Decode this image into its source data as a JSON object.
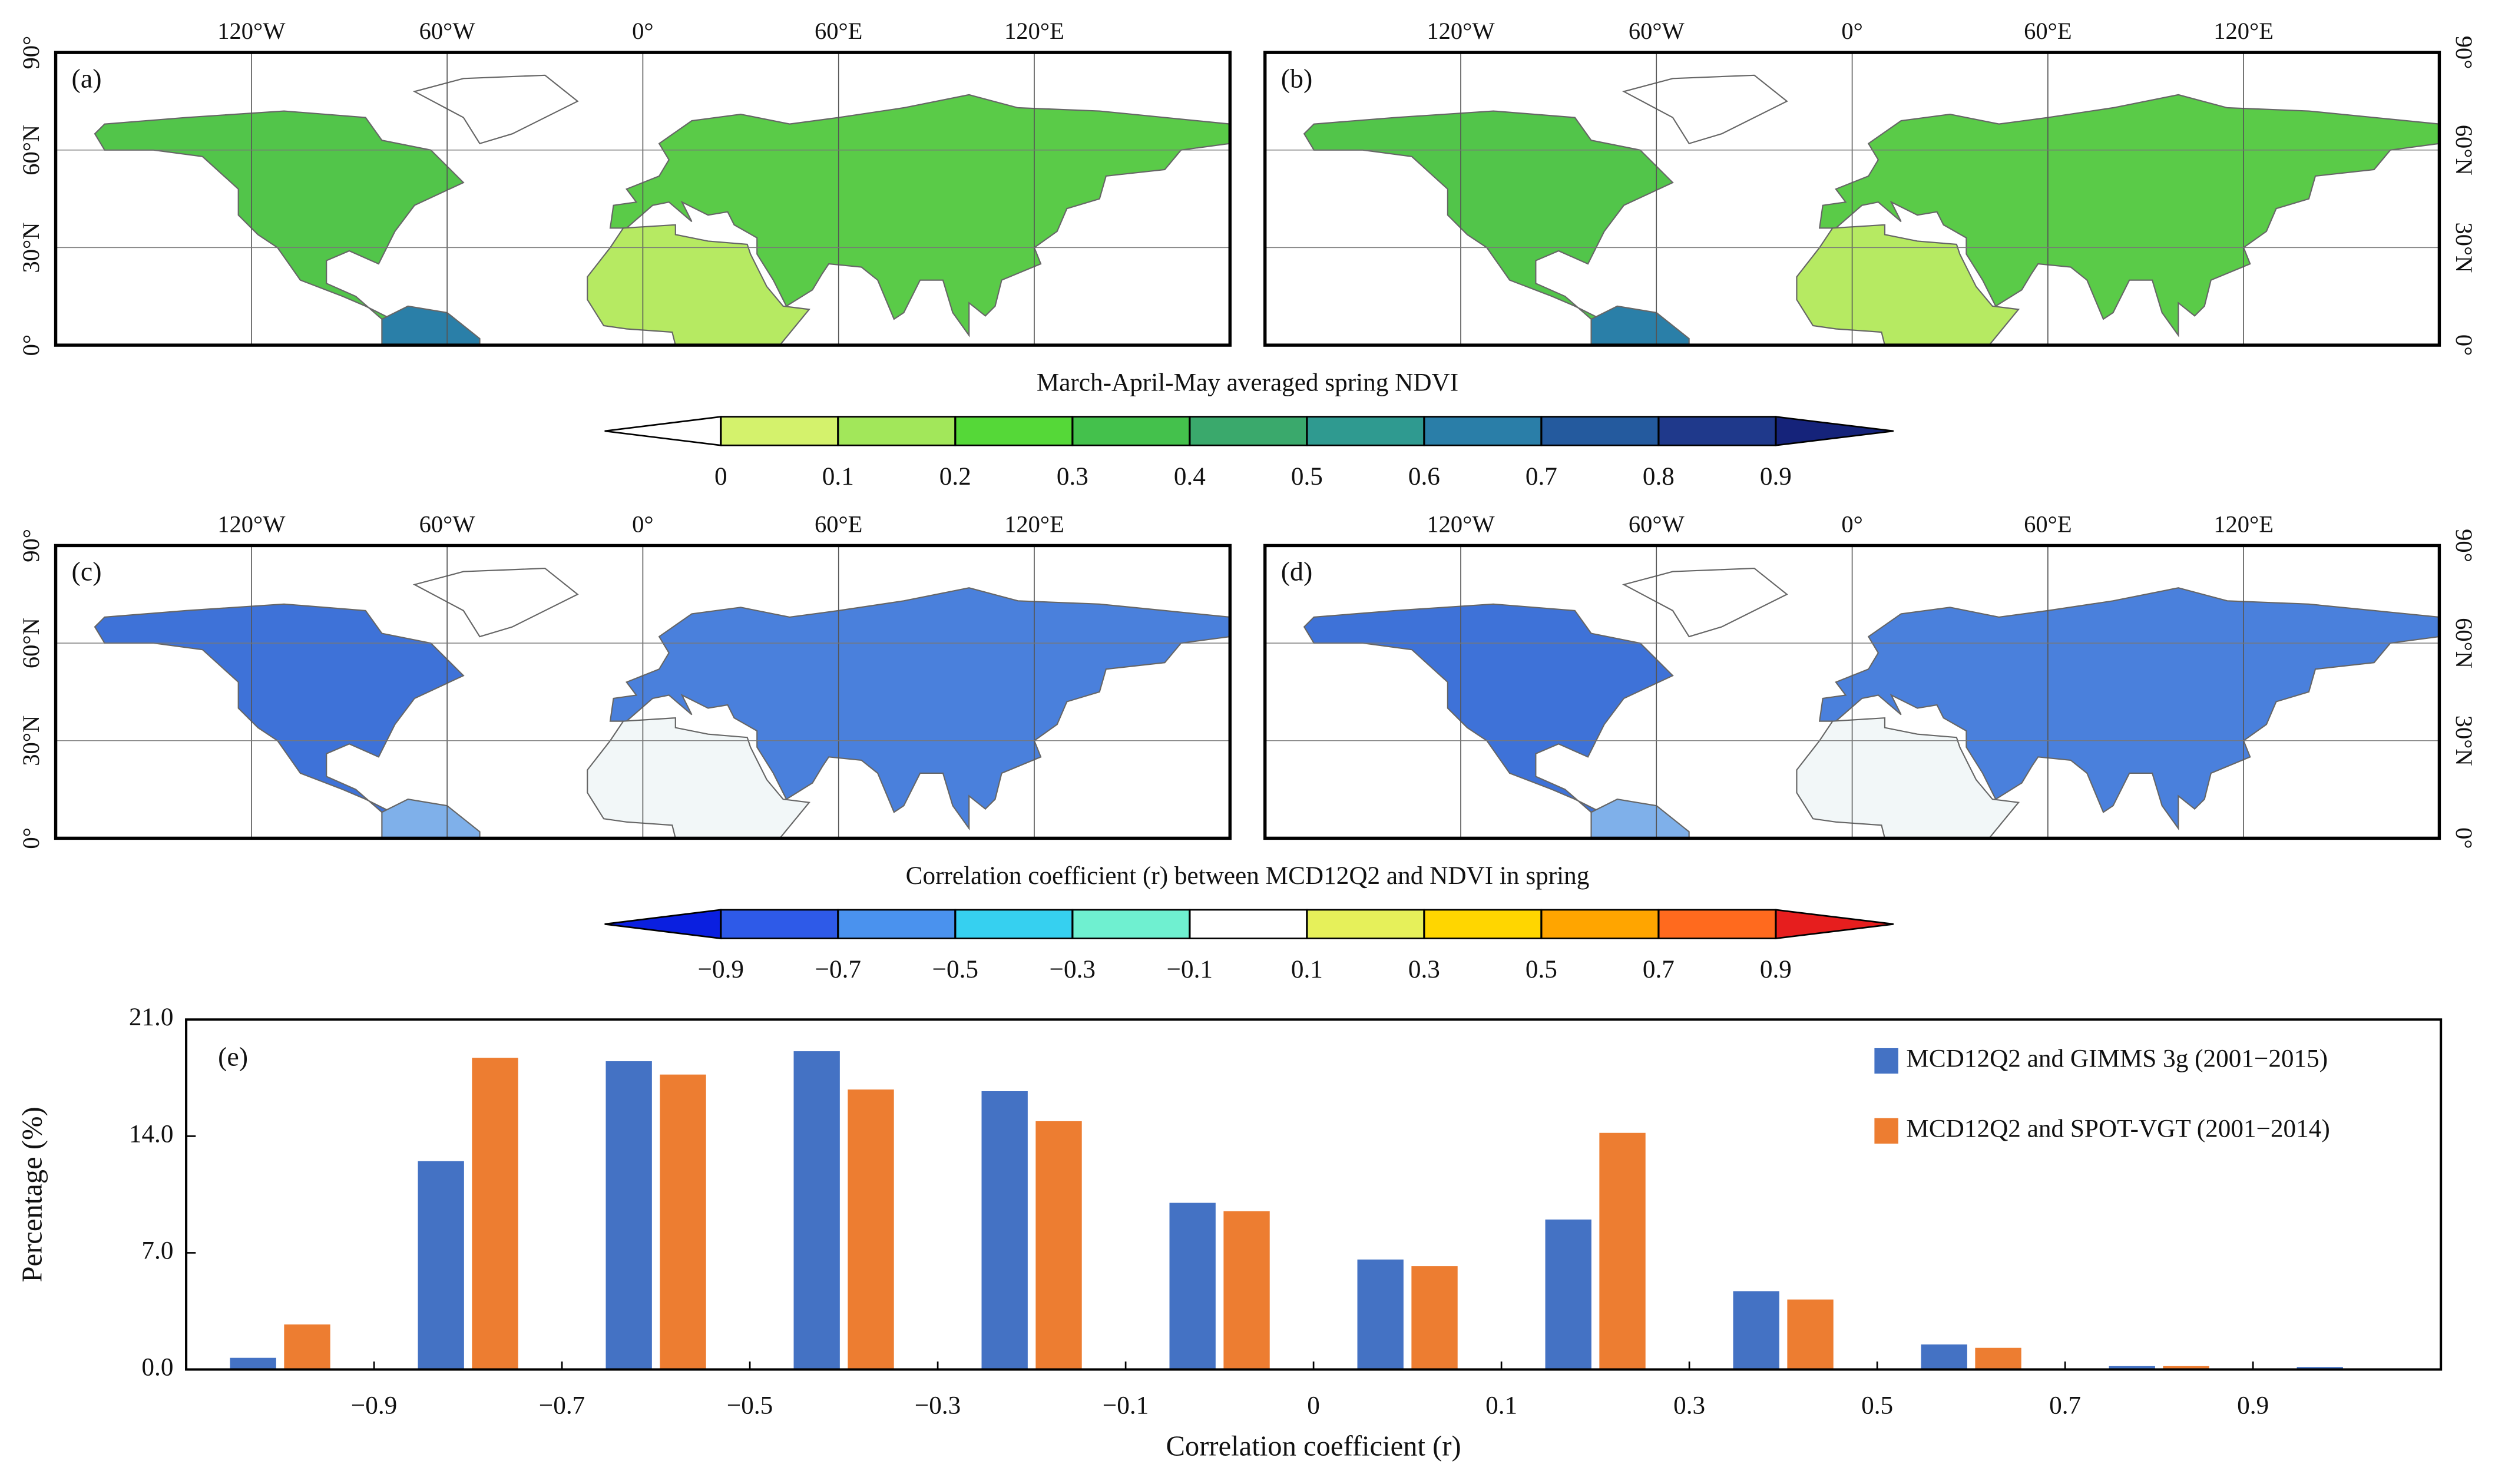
{
  "maps": {
    "panels": [
      "(a)",
      "(b)",
      "(c)",
      "(d)"
    ],
    "lon_ticks": [
      {
        "value": -120,
        "label": "120°W"
      },
      {
        "value": -60,
        "label": "60°W"
      },
      {
        "value": 0,
        "label": "0°"
      },
      {
        "value": 60,
        "label": "60°E"
      },
      {
        "value": 120,
        "label": "120°E"
      }
    ],
    "lat_ticks": [
      {
        "value": 0,
        "label": "0°"
      },
      {
        "value": 30,
        "label": "30°N"
      },
      {
        "value": 60,
        "label": "60°N"
      },
      {
        "value": 90,
        "label": "90°"
      }
    ]
  },
  "colorbars": [
    {
      "title": "March-April-May averaged spring NDVI",
      "ticks": [
        0,
        0.1,
        0.2,
        0.3,
        0.4,
        0.5,
        0.6,
        0.7,
        0.8,
        0.9
      ],
      "under": "#ffffff",
      "over": "#15237a",
      "colors": [
        "#d4f26c",
        "#a2e75a",
        "#55d838",
        "#44c14c",
        "#3aa96c",
        "#2f9a90",
        "#2a7ea8",
        "#245a9e",
        "#1f398b"
      ]
    },
    {
      "title": "Correlation coefficient (r) between MCD12Q2 and NDVI in spring",
      "ticks": [
        {
          "value": -0.9,
          "label": "−0.9"
        },
        {
          "value": -0.7,
          "label": "−0.7"
        },
        {
          "value": -0.5,
          "label": "−0.5"
        },
        {
          "value": -0.3,
          "label": "−0.3"
        },
        {
          "value": -0.1,
          "label": "−0.1"
        },
        0.1,
        0.3,
        0.5,
        0.7,
        0.9
      ],
      "under": "#0a1fe0",
      "over": "#e61e1e",
      "colors": [
        "#2e5ae8",
        "#4a92ee",
        "#36d0f0",
        "#6ff0d0",
        "#ffffff",
        "#e6f05a",
        "#ffd600",
        "#ffa500",
        "#ff6a1e"
      ]
    }
  ],
  "chart_data": {
    "type": "bar",
    "annotation": "(e)",
    "x_label": "Correlation coefficient (r)",
    "y_label": "Percentage (%)",
    "categories": [
      null,
      null,
      null,
      null,
      null,
      null,
      null,
      null,
      null,
      null,
      null,
      null
    ],
    "category_boundary_labels": [
      "−0.9",
      "−0.7",
      "−0.5",
      "−0.3",
      "−0.1",
      "0",
      "0.1",
      "0.3",
      "0.5",
      "0.7",
      "0.9"
    ],
    "series": [
      {
        "name": "MCD12Q2 and GIMMS 3g (2001−2015)",
        "color": "#4472c4",
        "values": [
          0.7,
          12.5,
          18.5,
          19.1,
          16.7,
          10.0,
          6.6,
          9.0,
          4.7,
          1.5,
          0.2,
          0.15
        ]
      },
      {
        "name": "MCD12Q2 and SPOT-VGT (2001−2014)",
        "color": "#ed7d31",
        "values": [
          2.7,
          18.7,
          17.7,
          16.8,
          14.9,
          9.5,
          6.2,
          14.2,
          4.2,
          1.3,
          0.2,
          0
        ]
      }
    ],
    "ylim": [
      0,
      21
    ],
    "yticks": [
      {
        "value": 0,
        "label": "0.0"
      },
      {
        "value": 7,
        "label": "7.0"
      },
      {
        "value": 14,
        "label": "14.0"
      },
      {
        "value": 21,
        "label": "21.0"
      }
    ],
    "legend": "upper right"
  }
}
